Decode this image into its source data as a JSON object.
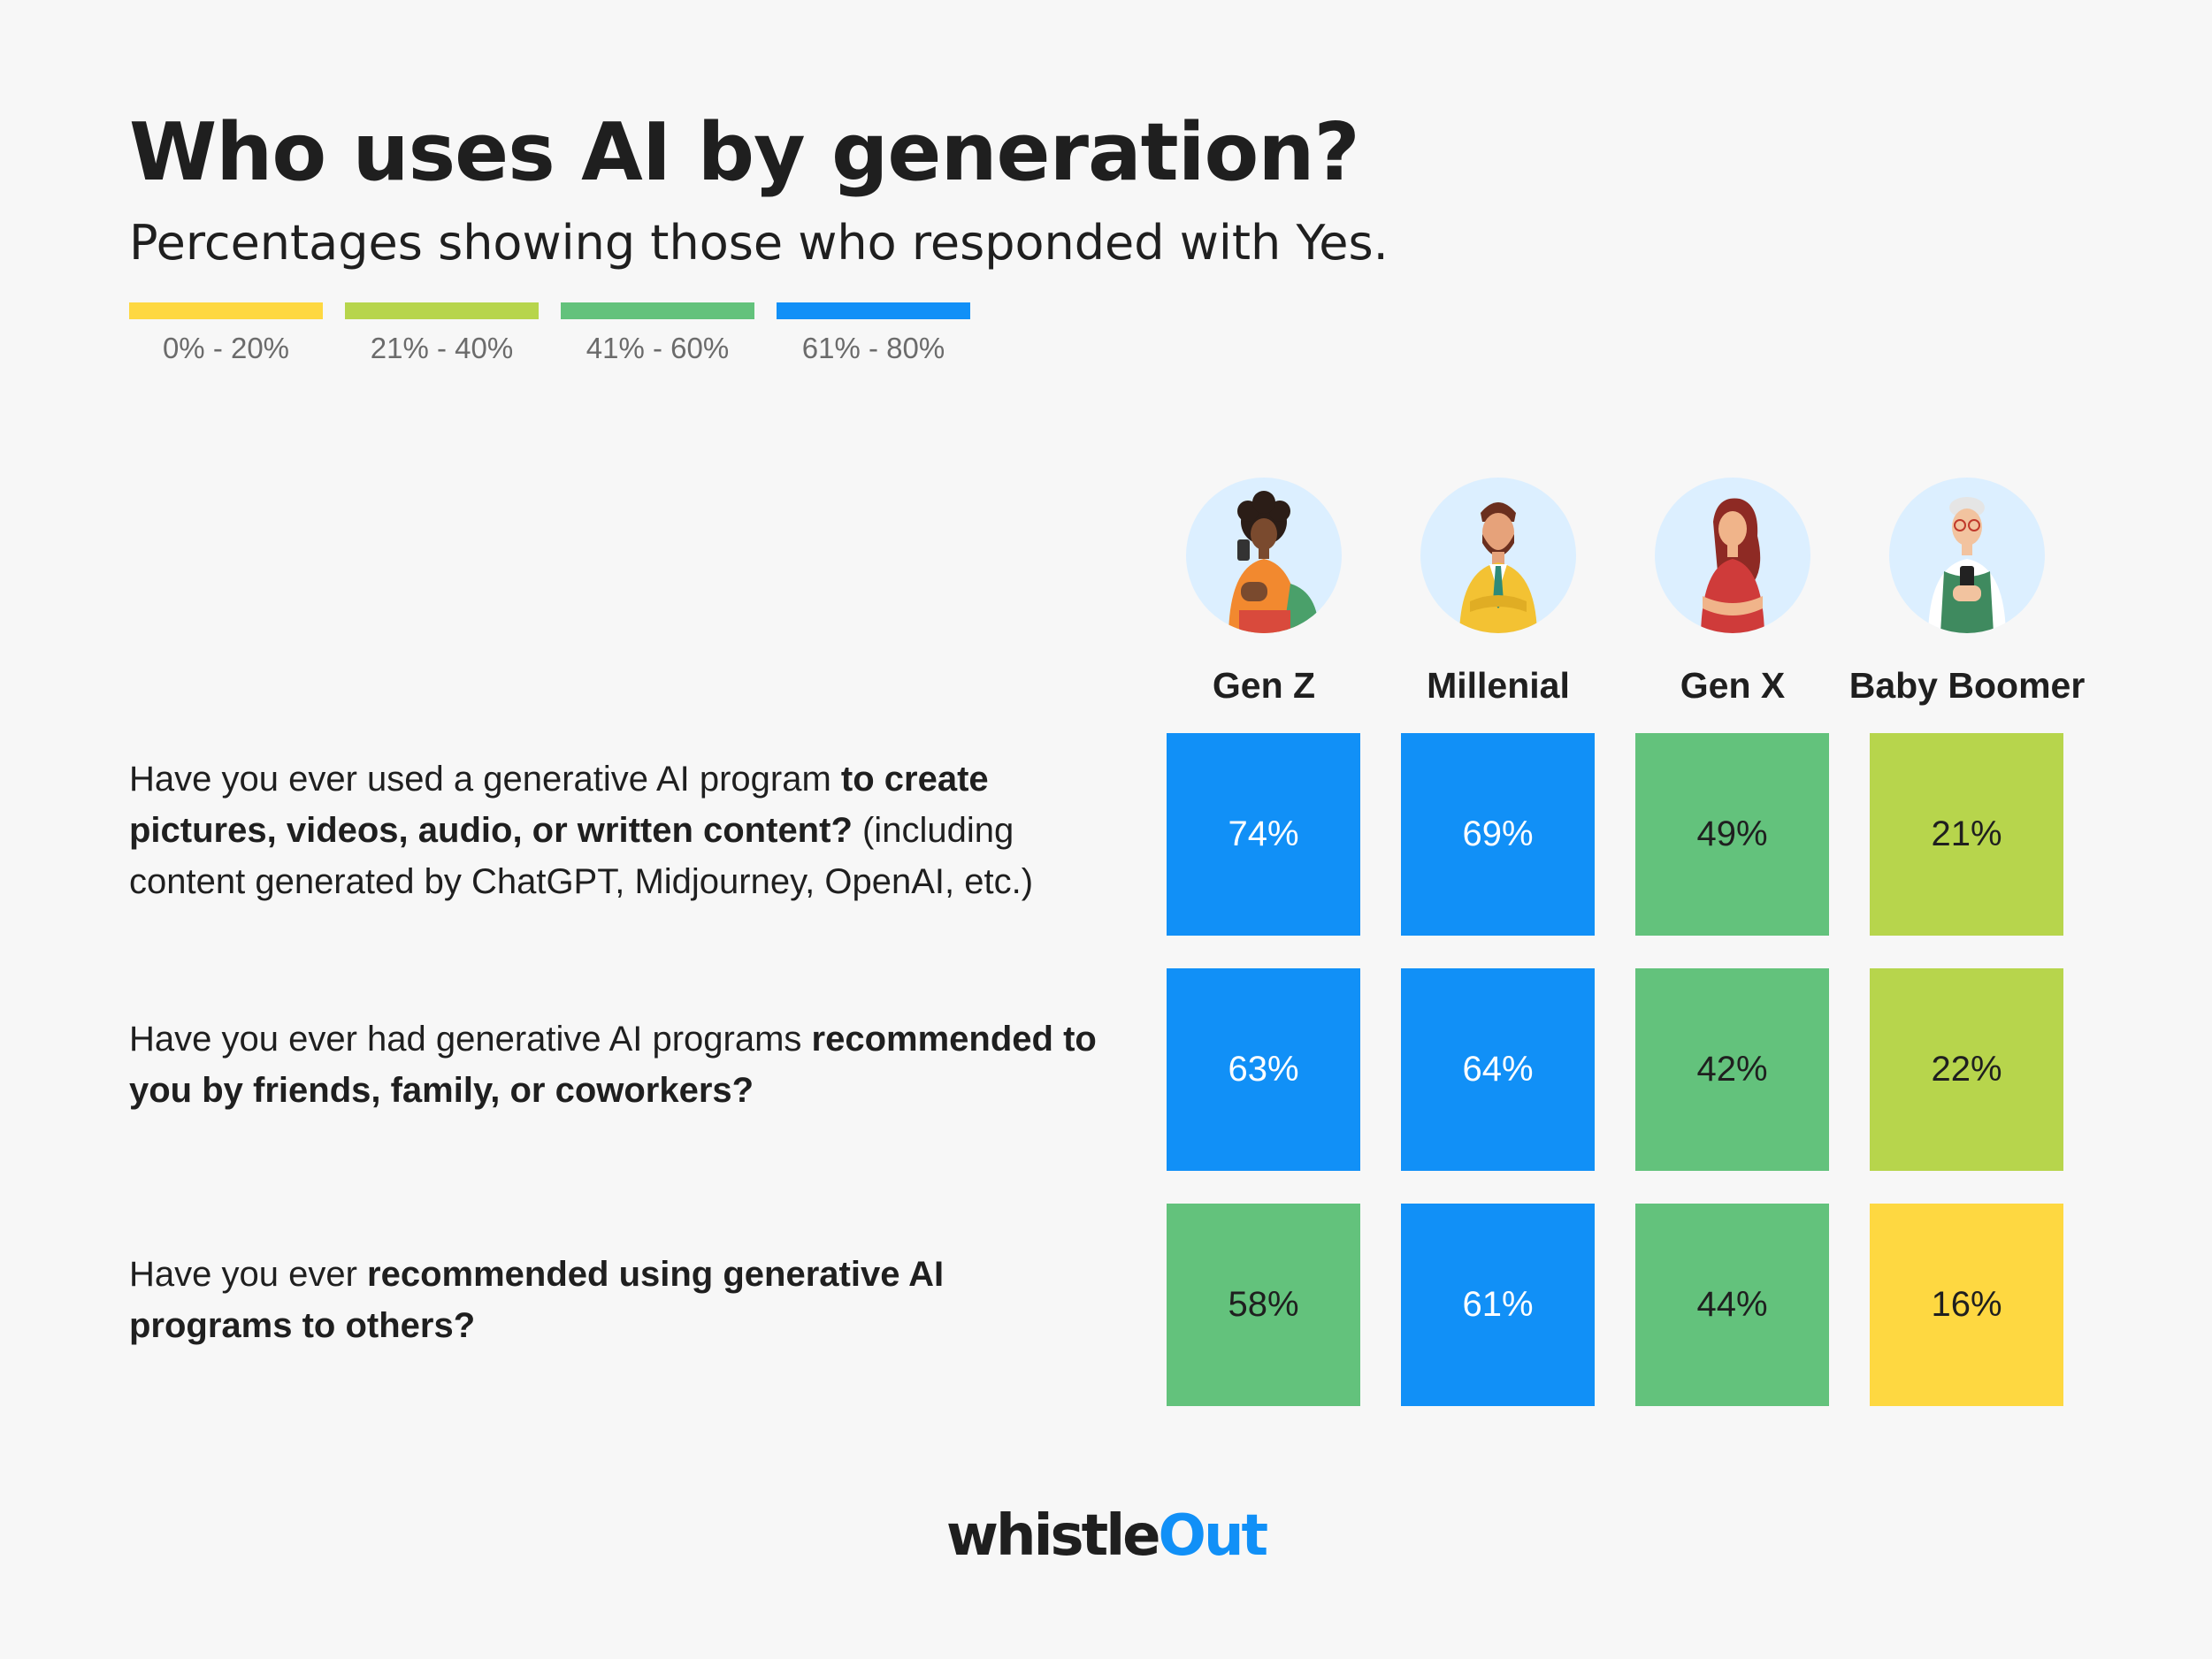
{
  "header": {
    "title": "Who uses AI by generation?",
    "subtitle": "Percentages showing those who responded with Yes."
  },
  "legend": [
    {
      "label": "0% - 20%",
      "color": "#fed841"
    },
    {
      "label": "21% - 40%",
      "color": "#b7d54c"
    },
    {
      "label": "41% - 60%",
      "color": "#63c27c"
    },
    {
      "label": "61% - 80%",
      "color": "#1190f7"
    }
  ],
  "logo": {
    "part1": "whistle",
    "part2": "Out"
  },
  "chart_data": {
    "type": "table",
    "columns": [
      "Gen Z",
      "Millenial",
      "Gen X",
      "Baby Boomer"
    ],
    "rows": [
      {
        "question_parts": [
          {
            "text": "Have you ever used a generative AI program ",
            "bold": false
          },
          {
            "text": "to create pictures, videos, audio, or written content?",
            "bold": true
          },
          {
            "text": " (including content generated by ChatGPT, Midjourney, OpenAI, etc.)",
            "bold": false
          }
        ],
        "values": [
          74,
          69,
          49,
          21
        ],
        "labels": [
          "74%",
          "69%",
          "49%",
          "21%"
        ]
      },
      {
        "question_parts": [
          {
            "text": "Have you ever had generative AI programs ",
            "bold": false
          },
          {
            "text": "recommended to you by friends, family, or coworkers?",
            "bold": true
          }
        ],
        "values": [
          63,
          64,
          42,
          22
        ],
        "labels": [
          "63%",
          "64%",
          "42%",
          "22%"
        ]
      },
      {
        "question_parts": [
          {
            "text": "Have you ever ",
            "bold": false
          },
          {
            "text": "recommended using generative AI programs to others?",
            "bold": true
          }
        ],
        "values": [
          58,
          61,
          44,
          16
        ],
        "labels": [
          "58%",
          "61%",
          "44%",
          "16%"
        ]
      }
    ],
    "color_scale": [
      {
        "min": 0,
        "max": 20,
        "color": "#fed841",
        "text_color": "#1f1f1f"
      },
      {
        "min": 21,
        "max": 40,
        "color": "#b7d54c",
        "text_color": "#1f1f1f"
      },
      {
        "min": 41,
        "max": 60,
        "color": "#63c27c",
        "text_color": "#1f1f1f"
      },
      {
        "min": 61,
        "max": 80,
        "color": "#1190f7",
        "text_color": "#ffffff"
      }
    ]
  },
  "avatars": [
    "woman-with-phone-icon",
    "bearded-man-icon",
    "woman-arms-crossed-icon",
    "elderly-man-with-phone-icon"
  ]
}
